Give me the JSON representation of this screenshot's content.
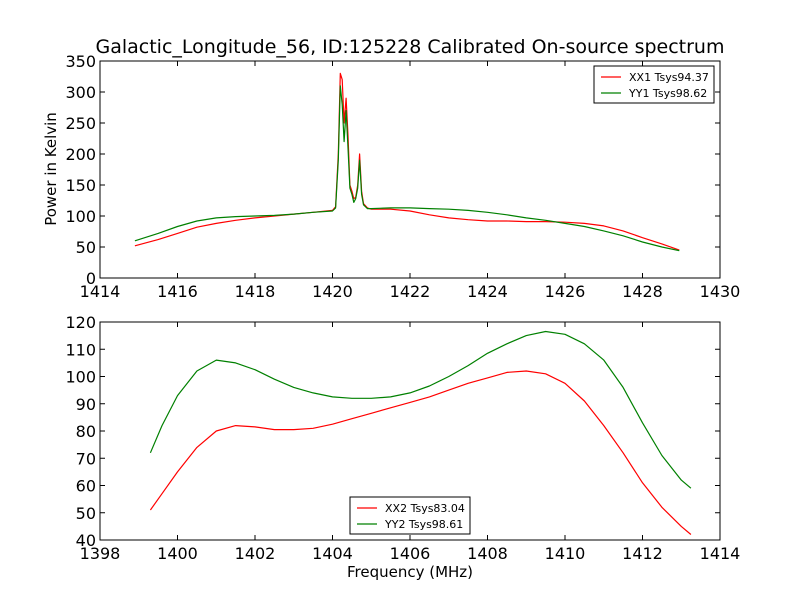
{
  "chart_data": [
    {
      "type": "line",
      "title": "Galactic_Longitude_56, ID:125228 Calibrated On-source spectrum",
      "xlabel": "",
      "ylabel": "Power in Kelvin",
      "xlim": [
        1414,
        1430
      ],
      "ylim": [
        0,
        350
      ],
      "xticks": [
        1414,
        1416,
        1418,
        1420,
        1422,
        1424,
        1426,
        1428,
        1430
      ],
      "yticks": [
        0,
        50,
        100,
        150,
        200,
        250,
        300,
        350
      ],
      "grid": false,
      "legend_position": "top-right",
      "series": [
        {
          "name": "XX1 Tsys94.37",
          "color": "#ff0000",
          "x": [
            1414.9,
            1415.5,
            1416.0,
            1416.5,
            1417.0,
            1417.5,
            1418.0,
            1418.5,
            1419.0,
            1419.5,
            1420.0,
            1420.08,
            1420.15,
            1420.2,
            1420.25,
            1420.3,
            1420.35,
            1420.4,
            1420.45,
            1420.5,
            1420.55,
            1420.6,
            1420.65,
            1420.7,
            1420.75,
            1420.8,
            1420.9,
            1421.0,
            1421.5,
            1422.0,
            1422.5,
            1423.0,
            1423.5,
            1424.0,
            1424.5,
            1425.0,
            1425.5,
            1426.0,
            1426.5,
            1427.0,
            1427.5,
            1428.0,
            1428.5,
            1428.95
          ],
          "y": [
            52,
            62,
            72,
            82,
            88,
            93,
            97,
            100,
            103,
            106,
            109,
            115,
            200,
            330,
            320,
            250,
            290,
            230,
            150,
            140,
            128,
            130,
            150,
            200,
            140,
            120,
            113,
            111,
            111,
            108,
            102,
            97,
            94,
            92,
            92,
            91,
            91,
            90,
            88,
            84,
            76,
            65,
            55,
            45
          ]
        },
        {
          "name": "YY1 Tsys98.62",
          "color": "#008000",
          "x": [
            1414.9,
            1415.5,
            1416.0,
            1416.5,
            1417.0,
            1417.5,
            1418.0,
            1418.5,
            1419.0,
            1419.5,
            1420.0,
            1420.08,
            1420.15,
            1420.2,
            1420.25,
            1420.3,
            1420.35,
            1420.4,
            1420.45,
            1420.5,
            1420.55,
            1420.6,
            1420.65,
            1420.7,
            1420.75,
            1420.8,
            1420.9,
            1421.0,
            1421.5,
            1422.0,
            1422.5,
            1423.0,
            1423.5,
            1424.0,
            1424.5,
            1425.0,
            1425.5,
            1426.0,
            1426.5,
            1427.0,
            1427.5,
            1428.0,
            1428.5,
            1428.95
          ],
          "y": [
            60,
            72,
            83,
            92,
            97,
            99,
            100,
            101,
            103,
            106,
            108,
            113,
            190,
            310,
            280,
            220,
            270,
            210,
            145,
            135,
            122,
            128,
            145,
            190,
            135,
            118,
            112,
            112,
            113,
            113,
            112,
            111,
            109,
            106,
            102,
            97,
            93,
            88,
            83,
            76,
            68,
            58,
            50,
            44
          ]
        }
      ]
    },
    {
      "type": "line",
      "title": "",
      "xlabel": "Frequency (MHz)",
      "ylabel": "",
      "xlim": [
        1398,
        1414
      ],
      "ylim": [
        40,
        120
      ],
      "xticks": [
        1398,
        1400,
        1402,
        1404,
        1406,
        1408,
        1410,
        1412,
        1414
      ],
      "yticks": [
        40,
        50,
        60,
        70,
        80,
        90,
        100,
        110,
        120
      ],
      "grid": false,
      "legend_position": "bottom-center",
      "series": [
        {
          "name": "XX2 Tsys83.04",
          "color": "#ff0000",
          "x": [
            1399.3,
            1399.6,
            1400.0,
            1400.5,
            1401.0,
            1401.5,
            1402.0,
            1402.5,
            1403.0,
            1403.5,
            1404.0,
            1404.5,
            1405.0,
            1405.5,
            1406.0,
            1406.5,
            1407.0,
            1407.5,
            1408.0,
            1408.5,
            1409.0,
            1409.5,
            1410.0,
            1410.5,
            1411.0,
            1411.5,
            1412.0,
            1412.5,
            1413.0,
            1413.25
          ],
          "y": [
            51,
            57,
            65,
            74,
            80,
            82,
            81.5,
            80.5,
            80.5,
            81,
            82.5,
            84.5,
            86.5,
            88.5,
            90.5,
            92.5,
            95,
            97.5,
            99.5,
            101.5,
            102,
            101,
            97.5,
            91,
            82,
            72,
            61,
            52,
            45,
            42
          ]
        },
        {
          "name": "YY2 Tsys98.61",
          "color": "#008000",
          "x": [
            1399.3,
            1399.6,
            1400.0,
            1400.5,
            1401.0,
            1401.5,
            1402.0,
            1402.5,
            1403.0,
            1403.5,
            1404.0,
            1404.5,
            1405.0,
            1405.5,
            1406.0,
            1406.5,
            1407.0,
            1407.5,
            1408.0,
            1408.5,
            1409.0,
            1409.5,
            1410.0,
            1410.5,
            1411.0,
            1411.5,
            1412.0,
            1412.5,
            1413.0,
            1413.25
          ],
          "y": [
            72,
            82,
            93,
            102,
            106,
            105,
            102.5,
            99,
            96,
            94,
            92.5,
            92,
            92,
            92.5,
            94,
            96.5,
            100,
            104,
            108.5,
            112,
            115,
            116.5,
            115.5,
            112,
            106,
            96,
            83,
            71,
            62,
            59
          ]
        }
      ]
    }
  ]
}
